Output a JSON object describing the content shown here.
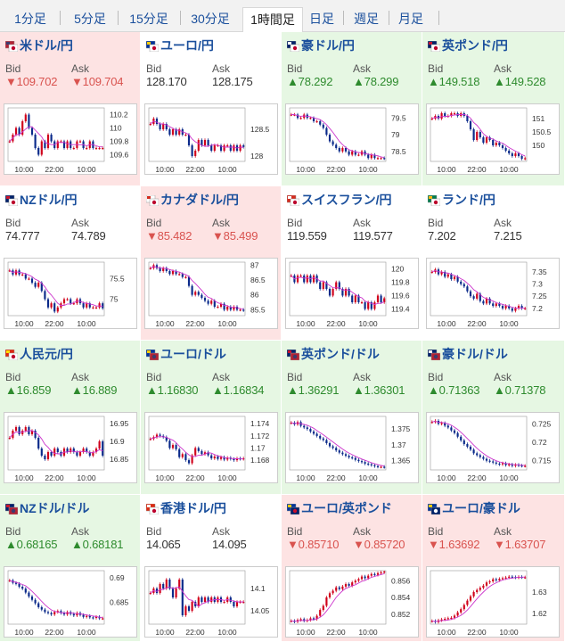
{
  "tabs": [
    {
      "label": "1分足",
      "active": false
    },
    {
      "label": "5分足",
      "active": false
    },
    {
      "label": "15分足",
      "active": false
    },
    {
      "label": "30分足",
      "active": false
    },
    {
      "label": "1時間足",
      "active": true
    },
    {
      "label": "日足",
      "active": false
    },
    {
      "label": "週足",
      "active": false
    },
    {
      "label": "月足",
      "active": false
    }
  ],
  "labels": {
    "bid": "Bid",
    "ask": "Ask"
  },
  "colors": {
    "up": "#2e8b2e",
    "down": "#d9534f",
    "up_bg": "#e6f7e3",
    "down_bg": "#fde3e3",
    "candle_up": "#d0021b",
    "candle_down": "#0b2a8a",
    "ma": "#cc33cc",
    "link": "#1a4f9c"
  },
  "x_ticks": [
    "10:00",
    "22:00",
    "10:00"
  ],
  "pairs": [
    {
      "name": "米ドル/円",
      "icon": "flag-us-jp-icon",
      "state": "down",
      "bid": "▼109.702",
      "ask": "▼109.704",
      "y_ticks": [
        "110.2",
        "110",
        "109.8",
        "109.6"
      ],
      "ylim": [
        109.5,
        110.3
      ],
      "series": [
        109.8,
        109.9,
        110.0,
        109.9,
        110.1,
        110.2,
        110.0,
        109.9,
        109.7,
        109.6,
        109.8,
        109.7,
        109.9,
        109.8,
        109.7,
        109.8,
        109.8,
        109.7,
        109.8,
        109.7,
        109.7,
        109.8,
        109.8,
        109.7,
        109.7,
        109.8,
        109.7,
        109.7,
        109.7,
        109.7
      ]
    },
    {
      "name": "ユーロ/円",
      "icon": "flag-eu-jp-icon",
      "state": "neutral",
      "bid": "128.170",
      "ask": "128.175",
      "y_ticks": [
        "128.5",
        "128"
      ],
      "ylim": [
        127.9,
        128.9
      ],
      "series": [
        128.6,
        128.7,
        128.6,
        128.5,
        128.6,
        128.5,
        128.4,
        128.5,
        128.4,
        128.5,
        128.4,
        128.4,
        128.2,
        128.0,
        128.1,
        128.3,
        128.2,
        128.3,
        128.2,
        128.1,
        128.2,
        128.2,
        128.1,
        128.2,
        128.2,
        128.1,
        128.2,
        128.1,
        128.2,
        128.17
      ]
    },
    {
      "name": "豪ドル/円",
      "icon": "flag-au-jp-icon",
      "state": "up",
      "bid": "▲78.292",
      "ask": "▲78.299",
      "y_ticks": [
        "79.5",
        "79",
        "78.5"
      ],
      "ylim": [
        78.2,
        79.8
      ],
      "series": [
        79.6,
        79.6,
        79.5,
        79.5,
        79.6,
        79.5,
        79.5,
        79.4,
        79.4,
        79.3,
        79.2,
        79.0,
        78.8,
        78.7,
        78.6,
        78.5,
        78.6,
        78.5,
        78.4,
        78.5,
        78.4,
        78.4,
        78.5,
        78.4,
        78.3,
        78.4,
        78.3,
        78.3,
        78.3,
        78.29
      ]
    },
    {
      "name": "英ポンド/円",
      "icon": "flag-gb-jp-icon",
      "state": "up",
      "bid": "▲149.518",
      "ask": "▲149.528",
      "y_ticks": [
        "151",
        "150.5",
        "150"
      ],
      "ylim": [
        149.4,
        151.4
      ],
      "series": [
        151.0,
        151.1,
        151.0,
        151.2,
        151.1,
        151.1,
        151.2,
        151.2,
        151.1,
        151.2,
        151.1,
        150.9,
        150.6,
        150.2,
        150.5,
        150.3,
        150.1,
        150.3,
        150.2,
        150.0,
        150.1,
        150.0,
        149.9,
        149.8,
        149.7,
        149.6,
        149.7,
        149.6,
        149.5,
        149.52
      ]
    },
    {
      "name": "NZドル/円",
      "icon": "flag-nz-jp-icon",
      "state": "neutral",
      "bid": "74.777",
      "ask": "74.789",
      "y_ticks": [
        "75.5",
        "75"
      ],
      "ylim": [
        74.6,
        75.9
      ],
      "series": [
        75.7,
        75.6,
        75.7,
        75.6,
        75.6,
        75.5,
        75.5,
        75.4,
        75.3,
        75.4,
        75.2,
        75.0,
        74.8,
        74.9,
        74.7,
        74.8,
        74.9,
        75.0,
        75.0,
        74.9,
        74.9,
        75.0,
        74.9,
        74.8,
        74.9,
        74.8,
        74.8,
        74.8,
        74.9,
        74.78
      ]
    },
    {
      "name": "カナダドル/円",
      "icon": "flag-ca-jp-icon",
      "state": "down",
      "bid": "▼85.482",
      "ask": "▼85.499",
      "y_ticks": [
        "87",
        "86.5",
        "86",
        "85.5"
      ],
      "ylim": [
        85.3,
        87.1
      ],
      "series": [
        86.9,
        87.0,
        86.9,
        86.8,
        86.9,
        86.8,
        86.7,
        86.8,
        86.7,
        86.7,
        86.6,
        86.6,
        86.3,
        86.0,
        86.1,
        86.0,
        85.9,
        85.8,
        85.7,
        85.8,
        85.6,
        85.6,
        85.7,
        85.5,
        85.6,
        85.5,
        85.6,
        85.5,
        85.5,
        85.48
      ]
    },
    {
      "name": "スイスフラン/円",
      "icon": "flag-ch-jp-icon",
      "state": "neutral",
      "bid": "119.559",
      "ask": "119.577",
      "y_ticks": [
        "120",
        "119.8",
        "119.6",
        "119.4"
      ],
      "ylim": [
        119.3,
        120.1
      ],
      "series": [
        119.9,
        119.8,
        119.9,
        119.9,
        119.8,
        119.9,
        119.8,
        119.9,
        119.8,
        119.7,
        119.8,
        119.7,
        119.6,
        119.7,
        119.8,
        119.7,
        119.6,
        119.7,
        119.6,
        119.5,
        119.6,
        119.5,
        119.5,
        119.4,
        119.5,
        119.4,
        119.5,
        119.6,
        119.5,
        119.56
      ]
    },
    {
      "name": "ランド/円",
      "icon": "flag-za-jp-icon",
      "state": "neutral",
      "bid": "7.202",
      "ask": "7.215",
      "y_ticks": [
        "7.35",
        "7.3",
        "7.25",
        "7.2"
      ],
      "ylim": [
        7.17,
        7.39
      ],
      "series": [
        7.35,
        7.36,
        7.34,
        7.35,
        7.33,
        7.34,
        7.32,
        7.33,
        7.31,
        7.3,
        7.29,
        7.27,
        7.25,
        7.24,
        7.26,
        7.23,
        7.22,
        7.24,
        7.22,
        7.21,
        7.22,
        7.21,
        7.2,
        7.21,
        7.2,
        7.19,
        7.2,
        7.21,
        7.2,
        7.2
      ]
    },
    {
      "name": "人民元/円",
      "icon": "flag-cn-jp-icon",
      "state": "up",
      "bid": "▲16.859",
      "ask": "▲16.889",
      "y_ticks": [
        "16.95",
        "16.9",
        "16.85"
      ],
      "ylim": [
        16.82,
        16.97
      ],
      "series": [
        16.91,
        16.93,
        16.94,
        16.92,
        16.93,
        16.94,
        16.92,
        16.93,
        16.91,
        16.88,
        16.86,
        16.85,
        16.87,
        16.86,
        16.88,
        16.87,
        16.86,
        16.88,
        16.87,
        16.88,
        16.87,
        16.86,
        16.87,
        16.88,
        16.87,
        16.86,
        16.87,
        16.88,
        16.9,
        16.86
      ]
    },
    {
      "name": "ユーロ/ドル",
      "icon": "flag-eu-us-icon",
      "state": "up",
      "bid": "▲1.16830",
      "ask": "▲1.16834",
      "y_ticks": [
        "1.174",
        "1.172",
        "1.17",
        "1.168"
      ],
      "ylim": [
        1.1664,
        1.1752
      ],
      "series": [
        1.1715,
        1.1718,
        1.1722,
        1.172,
        1.1718,
        1.1712,
        1.17,
        1.1705,
        1.1698,
        1.1685,
        1.169,
        1.168,
        1.1675,
        1.1688,
        1.17,
        1.1695,
        1.169,
        1.1693,
        1.1688,
        1.1683,
        1.1686,
        1.1682,
        1.1685,
        1.1681,
        1.1684,
        1.1682,
        1.168,
        1.1683,
        1.1682,
        1.1683
      ]
    },
    {
      "name": "英ポンド/ドル",
      "icon": "flag-gb-us-icon",
      "state": "up",
      "bid": "▲1.36291",
      "ask": "▲1.36301",
      "y_ticks": [
        "1.375",
        "1.37",
        "1.365"
      ],
      "ylim": [
        1.362,
        1.379
      ],
      "series": [
        1.377,
        1.3765,
        1.3772,
        1.376,
        1.3755,
        1.375,
        1.3742,
        1.3735,
        1.3728,
        1.372,
        1.3715,
        1.3705,
        1.3695,
        1.369,
        1.3682,
        1.3675,
        1.367,
        1.3665,
        1.366,
        1.3658,
        1.3652,
        1.3648,
        1.3645,
        1.364,
        1.3638,
        1.3635,
        1.3632,
        1.363,
        1.363,
        1.3629
      ]
    },
    {
      "name": "豪ドル/ドル",
      "icon": "flag-au-us-icon",
      "state": "up",
      "bid": "▲0.71363",
      "ask": "▲0.71378",
      "y_ticks": [
        "0.725",
        "0.72",
        "0.715"
      ],
      "ylim": [
        0.7125,
        0.727
      ],
      "series": [
        0.7255,
        0.7258,
        0.725,
        0.7252,
        0.7245,
        0.724,
        0.7232,
        0.7225,
        0.7215,
        0.7205,
        0.7195,
        0.7188,
        0.718,
        0.717,
        0.7165,
        0.716,
        0.7155,
        0.715,
        0.7148,
        0.7145,
        0.7142,
        0.714,
        0.7143,
        0.7138,
        0.714,
        0.7136,
        0.7139,
        0.7137,
        0.7136,
        0.7136
      ]
    },
    {
      "name": "NZドル/ドル",
      "icon": "flag-nz-us-icon",
      "state": "up",
      "bid": "▲0.68165",
      "ask": "▲0.68181",
      "y_ticks": [
        "0.69",
        "0.685"
      ],
      "ylim": [
        0.6805,
        0.6915
      ],
      "series": [
        0.6895,
        0.689,
        0.6888,
        0.6882,
        0.6878,
        0.687,
        0.6862,
        0.6855,
        0.6848,
        0.684,
        0.6835,
        0.683,
        0.6828,
        0.6825,
        0.683,
        0.6832,
        0.6828,
        0.6825,
        0.683,
        0.6826,
        0.6823,
        0.6828,
        0.6824,
        0.682,
        0.6822,
        0.6819,
        0.6818,
        0.682,
        0.6817,
        0.6817
      ]
    },
    {
      "name": "香港ドル/円",
      "icon": "flag-hk-jp-icon",
      "state": "neutral",
      "bid": "14.065",
      "ask": "14.095",
      "y_ticks": [
        "14.1",
        "14.05"
      ],
      "ylim": [
        14.02,
        14.14
      ],
      "series": [
        14.09,
        14.1,
        14.09,
        14.11,
        14.1,
        14.12,
        14.1,
        14.08,
        14.1,
        14.12,
        14.04,
        14.06,
        14.05,
        14.07,
        14.06,
        14.08,
        14.07,
        14.08,
        14.07,
        14.08,
        14.07,
        14.08,
        14.07,
        14.07,
        14.08,
        14.07,
        14.06,
        14.07,
        14.07,
        14.07
      ]
    },
    {
      "name": "ユーロ/英ポンド",
      "icon": "flag-eu-gb-icon",
      "state": "down",
      "bid": "▼0.85710",
      "ask": "▼0.85720",
      "y_ticks": [
        "0.856",
        "0.854",
        "0.852"
      ],
      "ylim": [
        0.8508,
        0.8572
      ],
      "series": [
        0.8512,
        0.8511,
        0.8513,
        0.8514,
        0.8512,
        0.8513,
        0.8515,
        0.8514,
        0.8518,
        0.8525,
        0.853,
        0.854,
        0.8545,
        0.8548,
        0.8552,
        0.855,
        0.8553,
        0.8556,
        0.8554,
        0.8558,
        0.856,
        0.8562,
        0.8565,
        0.8563,
        0.8566,
        0.8568,
        0.8567,
        0.8569,
        0.857,
        0.8571
      ]
    },
    {
      "name": "ユーロ/豪ドル",
      "icon": "flag-eu-au-icon",
      "state": "down",
      "bid": "▼1.63692",
      "ask": "▼1.63707",
      "y_ticks": [
        "1.63",
        "1.62"
      ],
      "ylim": [
        1.615,
        1.64
      ],
      "series": [
        1.6165,
        1.616,
        1.6168,
        1.6172,
        1.6175,
        1.6178,
        1.618,
        1.619,
        1.6205,
        1.622,
        1.624,
        1.626,
        1.628,
        1.63,
        1.631,
        1.632,
        1.633,
        1.6345,
        1.635,
        1.636,
        1.6355,
        1.6362,
        1.6365,
        1.6368,
        1.6372,
        1.637,
        1.6368,
        1.6371,
        1.6369,
        1.6369
      ]
    }
  ]
}
